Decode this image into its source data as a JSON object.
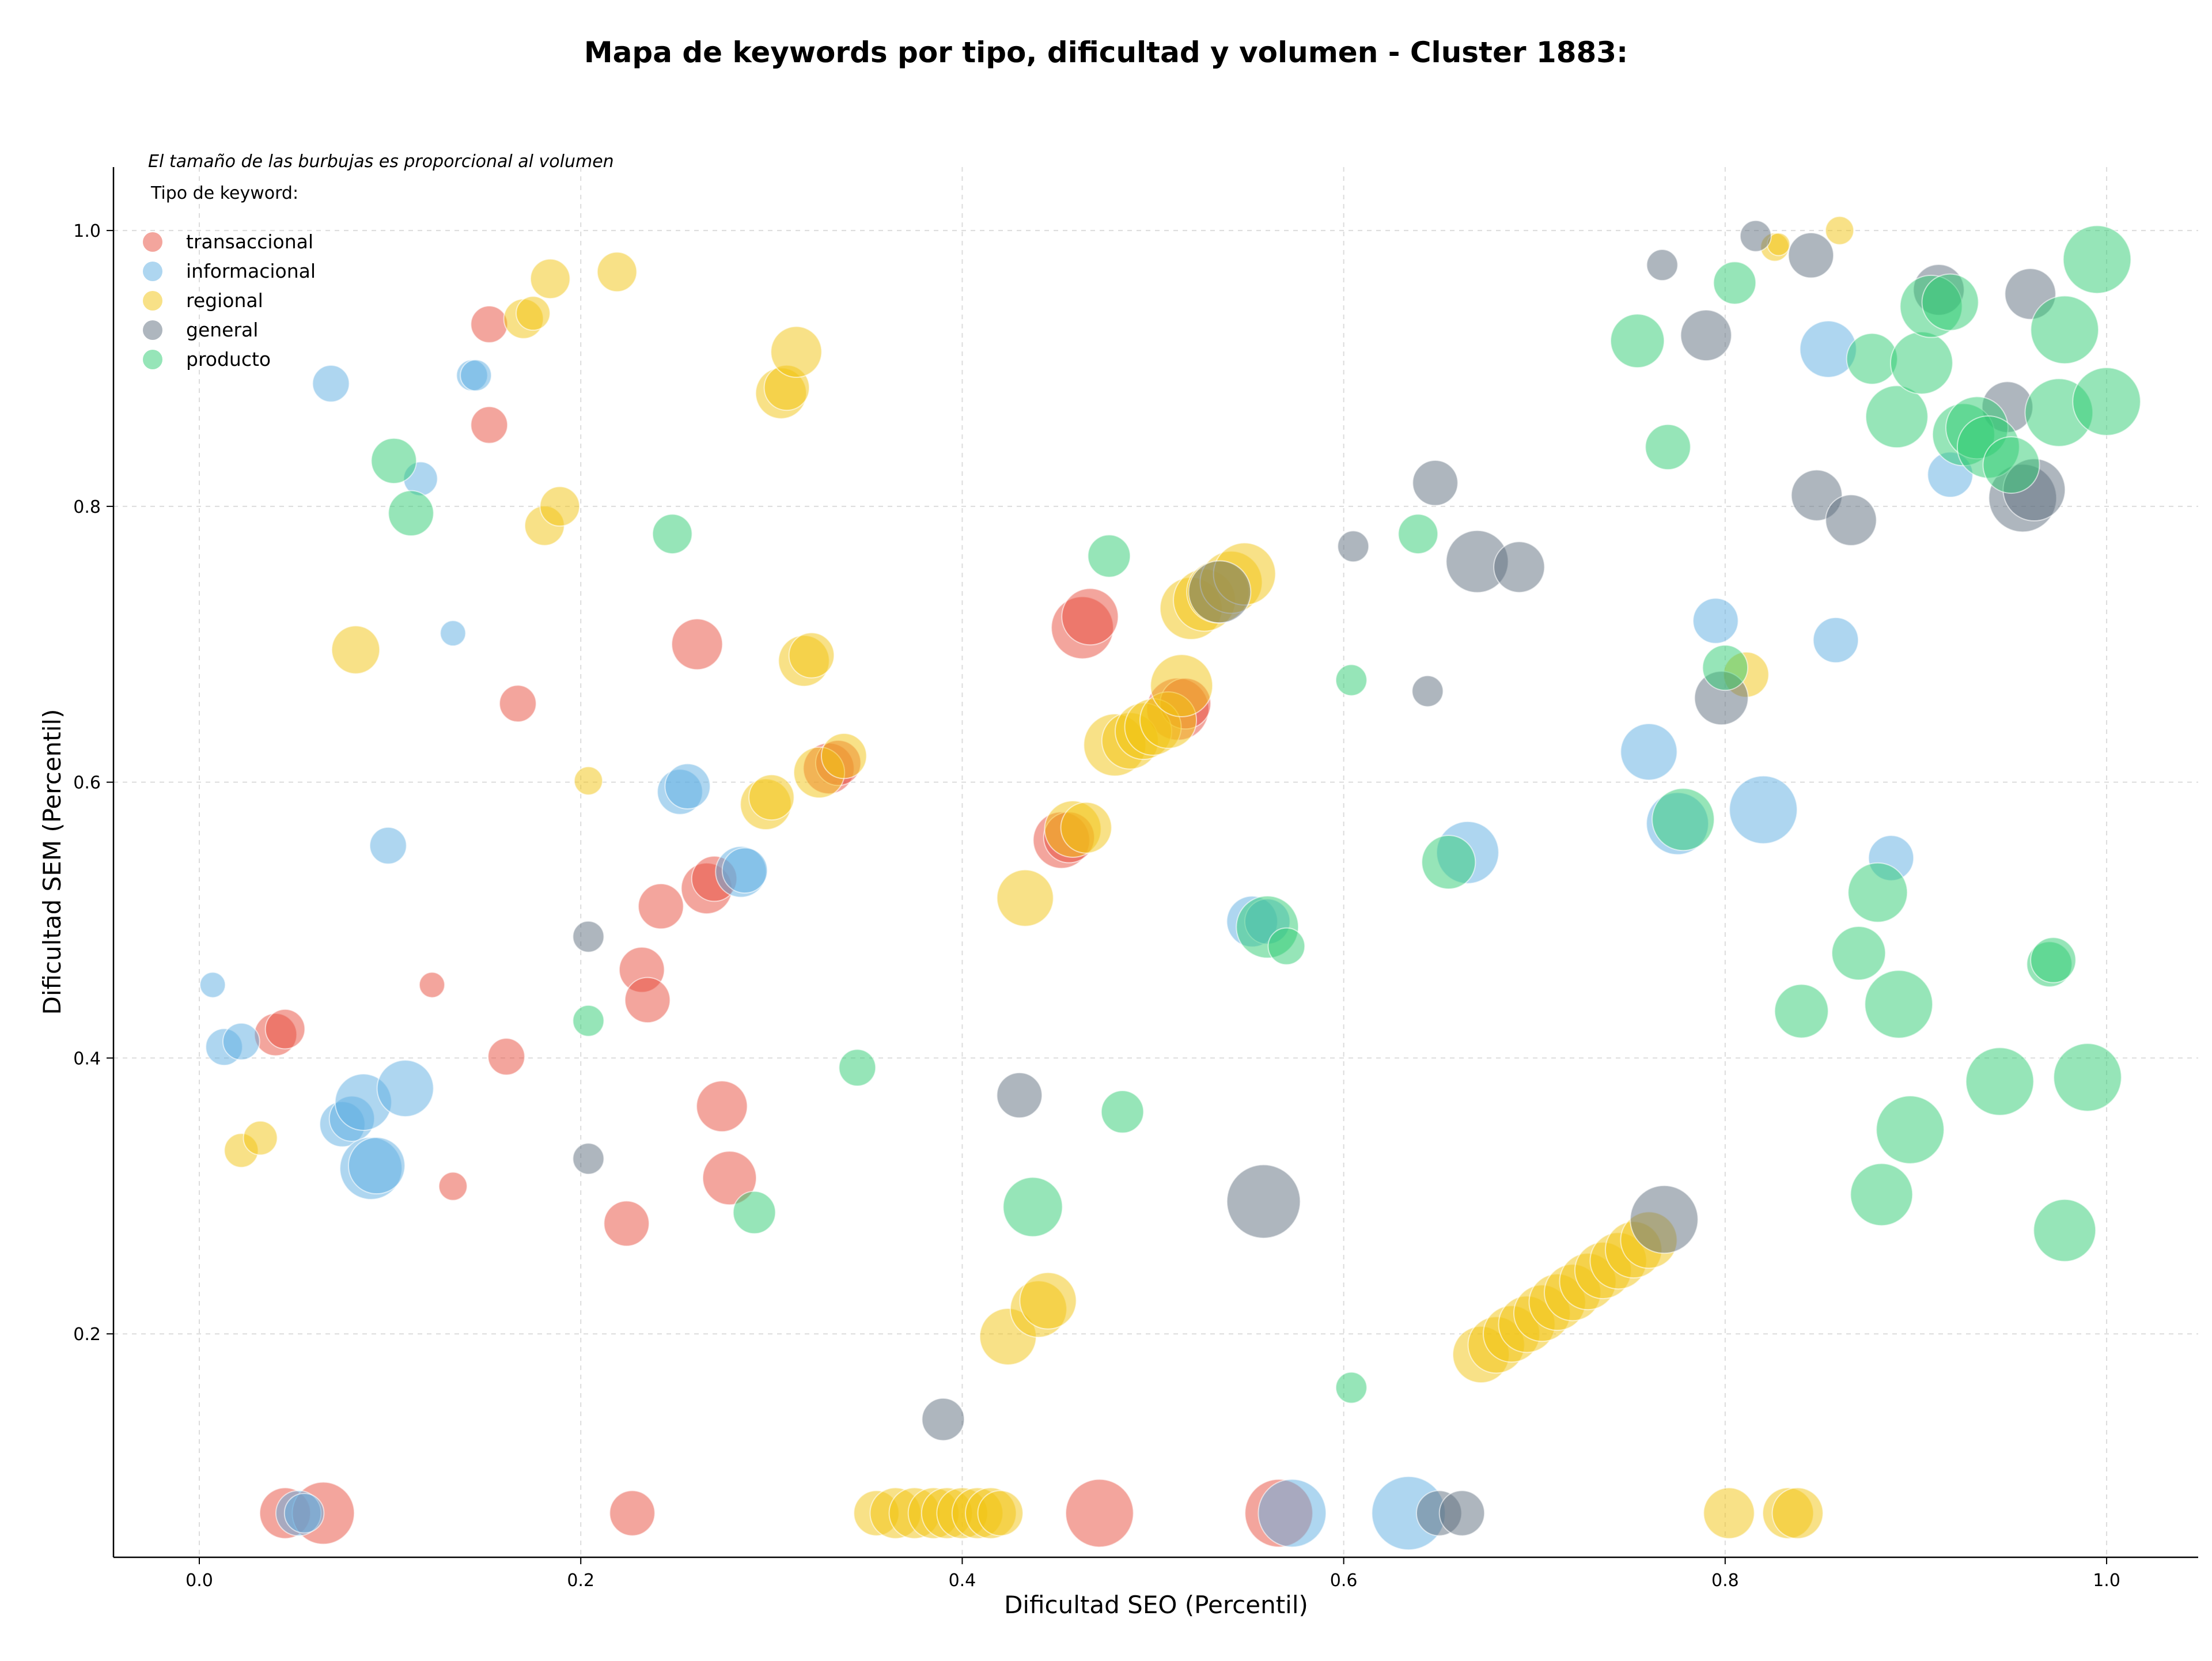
{
  "chart_data": {
    "type": "scatter",
    "title": "Mapa de keywords por tipo, dificultad y volumen - Cluster 1883:",
    "xlabel": "Dificultad SEO (Percentil)",
    "ylabel": "Dificultad SEM (Percentil)",
    "xlim": [
      -0.045,
      1.048
    ],
    "ylim": [
      0.038,
      1.046
    ],
    "x_ticks": [
      "0.0",
      "0.2",
      "0.4",
      "0.6",
      "0.8",
      "1.0"
    ],
    "y_ticks": [
      "0.2",
      "0.4",
      "0.6",
      "0.8",
      "1.0"
    ],
    "grid": true,
    "note": "El tamaño de las burbujas es proporcional al volumen",
    "legend_title": "Tipo de keyword:",
    "legend_position": "top-left",
    "series": [
      {
        "name": "transaccional",
        "color": "#e74c3c",
        "points": [
          [
            0.045,
            0.07,
            18
          ],
          [
            0.065,
            0.07,
            22
          ],
          [
            0.04,
            0.417,
            15
          ],
          [
            0.045,
            0.421,
            14
          ],
          [
            0.122,
            0.453,
            9
          ],
          [
            0.133,
            0.307,
            10
          ],
          [
            0.152,
            0.932,
            13
          ],
          [
            0.152,
            0.859,
            13
          ],
          [
            0.161,
            0.401,
            13
          ],
          [
            0.167,
            0.657,
            13
          ],
          [
            0.224,
            0.28,
            16
          ],
          [
            0.227,
            0.07,
            16
          ],
          [
            0.232,
            0.464,
            16
          ],
          [
            0.235,
            0.442,
            16
          ],
          [
            0.242,
            0.51,
            16
          ],
          [
            0.261,
            0.7,
            18
          ],
          [
            0.266,
            0.523,
            18
          ],
          [
            0.27,
            0.53,
            16
          ],
          [
            0.274,
            0.365,
            18
          ],
          [
            0.278,
            0.313,
            19
          ],
          [
            0.33,
            0.61,
            18
          ],
          [
            0.335,
            0.614,
            16
          ],
          [
            0.452,
            0.558,
            20
          ],
          [
            0.456,
            0.56,
            18
          ],
          [
            0.463,
            0.712,
            22
          ],
          [
            0.467,
            0.72,
            20
          ],
          [
            0.472,
            0.07,
            24
          ],
          [
            0.513,
            0.653,
            22
          ],
          [
            0.517,
            0.657,
            18
          ],
          [
            0.566,
            0.07,
            24
          ]
        ]
      },
      {
        "name": "informacional",
        "color": "#5dade2",
        "points": [
          [
            0.007,
            0.453,
            9
          ],
          [
            0.013,
            0.408,
            13
          ],
          [
            0.022,
            0.412,
            13
          ],
          [
            0.052,
            0.07,
            16
          ],
          [
            0.055,
            0.07,
            14
          ],
          [
            0.069,
            0.889,
            13
          ],
          [
            0.075,
            0.352,
            16
          ],
          [
            0.08,
            0.356,
            16
          ],
          [
            0.086,
            0.368,
            20
          ],
          [
            0.09,
            0.32,
            22
          ],
          [
            0.093,
            0.322,
            20
          ],
          [
            0.099,
            0.554,
            13
          ],
          [
            0.108,
            0.378,
            20
          ],
          [
            0.116,
            0.82,
            12
          ],
          [
            0.133,
            0.708,
            9
          ],
          [
            0.143,
            0.895,
            11
          ],
          [
            0.145,
            0.895,
            11
          ],
          [
            0.252,
            0.593,
            16
          ],
          [
            0.256,
            0.597,
            16
          ],
          [
            0.284,
            0.535,
            18
          ],
          [
            0.286,
            0.536,
            16
          ],
          [
            0.552,
            0.499,
            18
          ],
          [
            0.56,
            0.499,
            16
          ],
          [
            0.573,
            0.07,
            24
          ],
          [
            0.634,
            0.07,
            26
          ],
          [
            0.665,
            0.549,
            22
          ],
          [
            0.76,
            0.622,
            20
          ],
          [
            0.775,
            0.57,
            22
          ],
          [
            0.795,
            0.717,
            16
          ],
          [
            0.82,
            0.58,
            24
          ],
          [
            0.854,
            0.914,
            20
          ],
          [
            0.858,
            0.703,
            16
          ],
          [
            0.887,
            0.545,
            16
          ],
          [
            0.918,
            0.823,
            16
          ]
        ]
      },
      {
        "name": "regional",
        "color": "#f1c40f",
        "points": [
          [
            0.022,
            0.333,
            12
          ],
          [
            0.032,
            0.342,
            12
          ],
          [
            0.082,
            0.696,
            17
          ],
          [
            0.17,
            0.936,
            14
          ],
          [
            0.175,
            0.94,
            12
          ],
          [
            0.181,
            0.786,
            14
          ],
          [
            0.184,
            0.965,
            14
          ],
          [
            0.189,
            0.8,
            14
          ],
          [
            0.204,
            0.601,
            10
          ],
          [
            0.219,
            0.97,
            14
          ],
          [
            0.297,
            0.584,
            18
          ],
          [
            0.3,
            0.589,
            16
          ],
          [
            0.305,
            0.882,
            18
          ],
          [
            0.308,
            0.886,
            16
          ],
          [
            0.313,
            0.912,
            18
          ],
          [
            0.317,
            0.688,
            18
          ],
          [
            0.321,
            0.692,
            16
          ],
          [
            0.325,
            0.607,
            18
          ],
          [
            0.338,
            0.619,
            16
          ],
          [
            0.355,
            0.07,
            16
          ],
          [
            0.365,
            0.07,
            18
          ],
          [
            0.375,
            0.07,
            18
          ],
          [
            0.385,
            0.07,
            18
          ],
          [
            0.392,
            0.07,
            18
          ],
          [
            0.4,
            0.07,
            18
          ],
          [
            0.408,
            0.07,
            18
          ],
          [
            0.415,
            0.07,
            18
          ],
          [
            0.42,
            0.07,
            16
          ],
          [
            0.424,
            0.198,
            20
          ],
          [
            0.433,
            0.516,
            20
          ],
          [
            0.44,
            0.218,
            20
          ],
          [
            0.445,
            0.224,
            20
          ],
          [
            0.458,
            0.566,
            20
          ],
          [
            0.465,
            0.567,
            18
          ],
          [
            0.48,
            0.627,
            22
          ],
          [
            0.488,
            0.63,
            20
          ],
          [
            0.495,
            0.637,
            20
          ],
          [
            0.5,
            0.64,
            20
          ],
          [
            0.508,
            0.645,
            20
          ],
          [
            0.515,
            0.67,
            22
          ],
          [
            0.52,
            0.726,
            22
          ],
          [
            0.527,
            0.732,
            22
          ],
          [
            0.534,
            0.738,
            22
          ],
          [
            0.541,
            0.745,
            22
          ],
          [
            0.548,
            0.751,
            22
          ],
          [
            0.672,
            0.185,
            20
          ],
          [
            0.68,
            0.192,
            20
          ],
          [
            0.688,
            0.2,
            20
          ],
          [
            0.696,
            0.207,
            20
          ],
          [
            0.704,
            0.215,
            20
          ],
          [
            0.712,
            0.223,
            20
          ],
          [
            0.72,
            0.23,
            20
          ],
          [
            0.728,
            0.238,
            20
          ],
          [
            0.736,
            0.246,
            20
          ],
          [
            0.744,
            0.253,
            20
          ],
          [
            0.752,
            0.261,
            20
          ],
          [
            0.76,
            0.268,
            20
          ],
          [
            0.802,
            0.07,
            18
          ],
          [
            0.811,
            0.678,
            16
          ],
          [
            0.826,
            0.988,
            10
          ],
          [
            0.828,
            0.99,
            8
          ],
          [
            0.833,
            0.07,
            18
          ],
          [
            0.838,
            0.07,
            18
          ],
          [
            0.86,
            1.0,
            10
          ]
        ]
      },
      {
        "name": "general",
        "color": "#5d6d7e",
        "points": [
          [
            0.204,
            0.488,
            11
          ],
          [
            0.204,
            0.327,
            11
          ],
          [
            0.39,
            0.138,
            15
          ],
          [
            0.43,
            0.373,
            16
          ],
          [
            0.535,
            0.738,
            22
          ],
          [
            0.558,
            0.296,
            26
          ],
          [
            0.605,
            0.771,
            11
          ],
          [
            0.644,
            0.666,
            11
          ],
          [
            0.648,
            0.817,
            16
          ],
          [
            0.65,
            0.07,
            16
          ],
          [
            0.662,
            0.07,
            16
          ],
          [
            0.67,
            0.76,
            22
          ],
          [
            0.692,
            0.756,
            18
          ],
          [
            0.767,
            0.975,
            11
          ],
          [
            0.768,
            0.283,
            24
          ],
          [
            0.79,
            0.924,
            18
          ],
          [
            0.798,
            0.661,
            19
          ],
          [
            0.816,
            0.996,
            11
          ],
          [
            0.845,
            0.982,
            16
          ],
          [
            0.848,
            0.808,
            18
          ],
          [
            0.866,
            0.79,
            18
          ],
          [
            0.912,
            0.957,
            18
          ],
          [
            0.948,
            0.872,
            18
          ],
          [
            0.956,
            0.806,
            24
          ],
          [
            0.962,
            0.812,
            22
          ],
          [
            0.96,
            0.954,
            18
          ]
        ]
      },
      {
        "name": "producto",
        "color": "#2ecc71",
        "points": [
          [
            0.102,
            0.833,
            16
          ],
          [
            0.111,
            0.795,
            16
          ],
          [
            0.204,
            0.427,
            11
          ],
          [
            0.248,
            0.78,
            14
          ],
          [
            0.291,
            0.288,
            15
          ],
          [
            0.345,
            0.393,
            13
          ],
          [
            0.437,
            0.292,
            21
          ],
          [
            0.477,
            0.764,
            15
          ],
          [
            0.484,
            0.361,
            15
          ],
          [
            0.56,
            0.495,
            22
          ],
          [
            0.57,
            0.481,
            13
          ],
          [
            0.604,
            0.674,
            11
          ],
          [
            0.604,
            0.161,
            11
          ],
          [
            0.639,
            0.78,
            14
          ],
          [
            0.655,
            0.542,
            19
          ],
          [
            0.754,
            0.92,
            19
          ],
          [
            0.77,
            0.843,
            16
          ],
          [
            0.778,
            0.573,
            22
          ],
          [
            0.8,
            0.683,
            16
          ],
          [
            0.805,
            0.962,
            15
          ],
          [
            0.84,
            0.434,
            19
          ],
          [
            0.87,
            0.476,
            19
          ],
          [
            0.877,
            0.907,
            18
          ],
          [
            0.88,
            0.52,
            21
          ],
          [
            0.882,
            0.301,
            22
          ],
          [
            0.891,
            0.439,
            24
          ],
          [
            0.897,
            0.348,
            24
          ],
          [
            0.89,
            0.865,
            22
          ],
          [
            0.903,
            0.904,
            22
          ],
          [
            0.908,
            0.945,
            22
          ],
          [
            0.918,
            0.948,
            20
          ],
          [
            0.925,
            0.852,
            22
          ],
          [
            0.932,
            0.857,
            22
          ],
          [
            0.938,
            0.843,
            22
          ],
          [
            0.944,
            0.383,
            24
          ],
          [
            0.95,
            0.83,
            20
          ],
          [
            0.97,
            0.468,
            16
          ],
          [
            0.972,
            0.471,
            16
          ],
          [
            0.975,
            0.868,
            24
          ],
          [
            0.978,
            0.928,
            24
          ],
          [
            0.978,
            0.275,
            22
          ],
          [
            0.99,
            0.386,
            24
          ],
          [
            0.995,
            0.979,
            24
          ],
          [
            1.0,
            0.876,
            24
          ]
        ]
      }
    ]
  }
}
